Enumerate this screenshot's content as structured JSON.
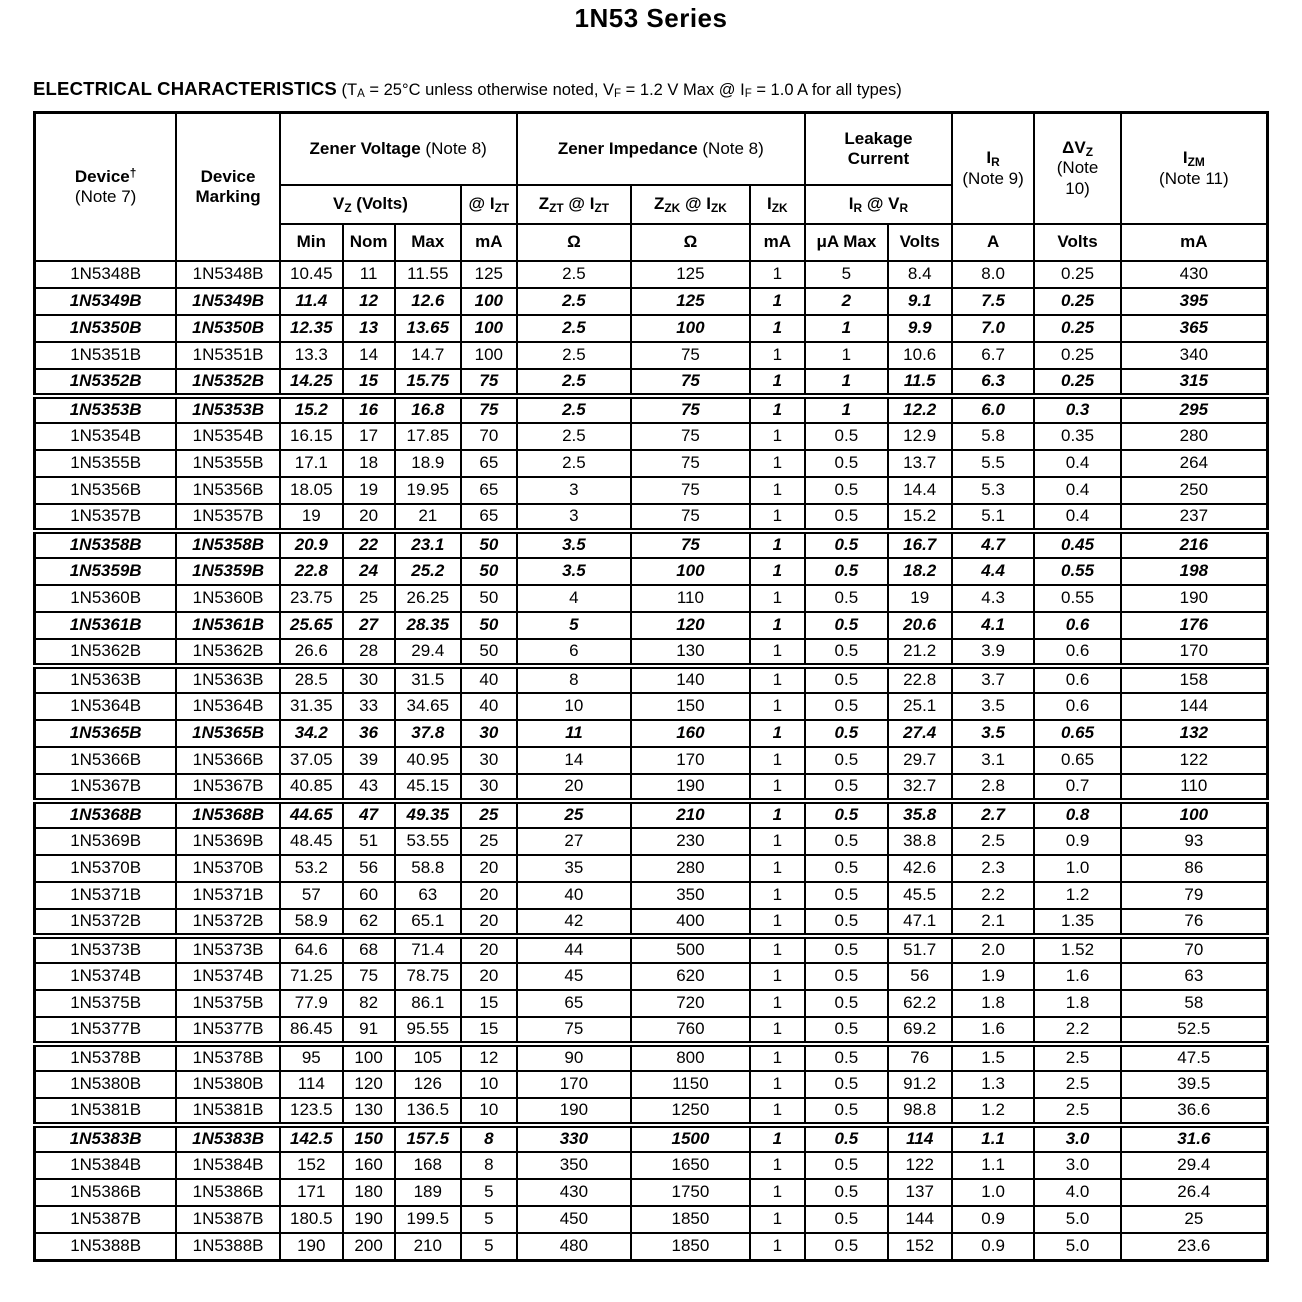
{
  "page": {
    "title": "1N53 Series"
  },
  "section": {
    "heading": "ELECTRICAL CHARACTERISTICS",
    "conditions": [
      {
        "t": " (T"
      },
      {
        "t": "A",
        "sub": true
      },
      {
        "t": " = 25°C unless otherwise noted, V"
      },
      {
        "t": "F",
        "sub": true
      },
      {
        "t": " = 1.2 V Max @ I"
      },
      {
        "t": "F",
        "sub": true
      },
      {
        "t": " = 1.0 A for all types)"
      }
    ]
  },
  "table": {
    "header": {
      "device": [
        {
          "t": "Device"
        },
        {
          "t": "†",
          "sup": true
        },
        {
          "br": true
        },
        {
          "t": "(Note 7)",
          "light": true
        }
      ],
      "marking": [
        {
          "t": "Device"
        },
        {
          "br": true
        },
        {
          "t": "Marking"
        }
      ],
      "zener_voltage": [
        {
          "t": "Zener Voltage"
        },
        {
          "t": " (Note 8)",
          "light": true
        }
      ],
      "zener_impedance": [
        {
          "t": "Zener Impedance"
        },
        {
          "t": " (Note 8)",
          "light": true
        }
      ],
      "leakage": [
        {
          "t": "Leakage"
        },
        {
          "br": true
        },
        {
          "t": "Current"
        }
      ],
      "vz_volts": [
        {
          "t": "V"
        },
        {
          "t": "Z",
          "sub": true
        },
        {
          "t": " (Volts)"
        }
      ],
      "at_izt": [
        {
          "t": "@ I"
        },
        {
          "t": "ZT",
          "sub": true
        }
      ],
      "zzt_at_izt": [
        {
          "t": "Z"
        },
        {
          "t": "ZT",
          "sub": true
        },
        {
          "t": " @ I"
        },
        {
          "t": "ZT",
          "sub": true
        }
      ],
      "zzk_at_izk": [
        {
          "t": "Z"
        },
        {
          "t": "ZK",
          "sub": true
        },
        {
          "t": " @ I"
        },
        {
          "t": "ZK",
          "sub": true
        }
      ],
      "izk": [
        {
          "t": "I"
        },
        {
          "t": "ZK",
          "sub": true
        }
      ],
      "ir_at_vr": [
        {
          "t": "I"
        },
        {
          "t": "R",
          "sub": true
        },
        {
          "t": " @ V"
        },
        {
          "t": "R",
          "sub": true
        }
      ],
      "ir_note9": [
        {
          "t": "I"
        },
        {
          "t": "R",
          "sub": true
        },
        {
          "br": true
        },
        {
          "t": "(Note 9)",
          "light": true
        }
      ],
      "dvz_note10": [
        {
          "t": "ΔV"
        },
        {
          "t": "Z",
          "sub": true
        },
        {
          "br": true
        },
        {
          "t": "(Note",
          "light": true
        },
        {
          "br": true
        },
        {
          "t": "10)",
          "light": true
        }
      ],
      "izm_note11": [
        {
          "t": "I"
        },
        {
          "t": "ZM",
          "sub": true
        },
        {
          "br": true
        },
        {
          "t": "(Note 11)",
          "light": true
        }
      ]
    },
    "units": [
      "Min",
      "Nom",
      "Max",
      "mA",
      "Ω",
      "Ω",
      "mA",
      "μA Max",
      "Volts",
      "A",
      "Volts",
      "mA"
    ],
    "col_widths_pct": [
      11.5,
      8.4,
      5.1,
      4.2,
      5.4,
      4.5,
      9.3,
      9.6,
      4.5,
      6.7,
      5.2,
      6.7,
      7.0,
      11.9
    ],
    "groups": [
      {
        "rows": [
          {
            "e": false,
            "c": [
              "1N5348B",
              "1N5348B",
              "10.45",
              "11",
              "11.55",
              "125",
              "2.5",
              "125",
              "1",
              "5",
              "8.4",
              "8.0",
              "0.25",
              "430"
            ]
          },
          {
            "e": true,
            "c": [
              "1N5349B",
              "1N5349B",
              "11.4",
              "12",
              "12.6",
              "100",
              "2.5",
              "125",
              "1",
              "2",
              "9.1",
              "7.5",
              "0.25",
              "395"
            ]
          },
          {
            "e": true,
            "c": [
              "1N5350B",
              "1N5350B",
              "12.35",
              "13",
              "13.65",
              "100",
              "2.5",
              "100",
              "1",
              "1",
              "9.9",
              "7.0",
              "0.25",
              "365"
            ]
          },
          {
            "e": false,
            "c": [
              "1N5351B",
              "1N5351B",
              "13.3",
              "14",
              "14.7",
              "100",
              "2.5",
              "75",
              "1",
              "1",
              "10.6",
              "6.7",
              "0.25",
              "340"
            ]
          },
          {
            "e": true,
            "c": [
              "1N5352B",
              "1N5352B",
              "14.25",
              "15",
              "15.75",
              "75",
              "2.5",
              "75",
              "1",
              "1",
              "11.5",
              "6.3",
              "0.25",
              "315"
            ]
          }
        ]
      },
      {
        "rows": [
          {
            "e": true,
            "c": [
              "1N5353B",
              "1N5353B",
              "15.2",
              "16",
              "16.8",
              "75",
              "2.5",
              "75",
              "1",
              "1",
              "12.2",
              "6.0",
              "0.3",
              "295"
            ]
          },
          {
            "e": false,
            "c": [
              "1N5354B",
              "1N5354B",
              "16.15",
              "17",
              "17.85",
              "70",
              "2.5",
              "75",
              "1",
              "0.5",
              "12.9",
              "5.8",
              "0.35",
              "280"
            ]
          },
          {
            "e": false,
            "c": [
              "1N5355B",
              "1N5355B",
              "17.1",
              "18",
              "18.9",
              "65",
              "2.5",
              "75",
              "1",
              "0.5",
              "13.7",
              "5.5",
              "0.4",
              "264"
            ]
          },
          {
            "e": false,
            "c": [
              "1N5356B",
              "1N5356B",
              "18.05",
              "19",
              "19.95",
              "65",
              "3",
              "75",
              "1",
              "0.5",
              "14.4",
              "5.3",
              "0.4",
              "250"
            ]
          },
          {
            "e": false,
            "c": [
              "1N5357B",
              "1N5357B",
              "19",
              "20",
              "21",
              "65",
              "3",
              "75",
              "1",
              "0.5",
              "15.2",
              "5.1",
              "0.4",
              "237"
            ]
          }
        ]
      },
      {
        "rows": [
          {
            "e": true,
            "c": [
              "1N5358B",
              "1N5358B",
              "20.9",
              "22",
              "23.1",
              "50",
              "3.5",
              "75",
              "1",
              "0.5",
              "16.7",
              "4.7",
              "0.45",
              "216"
            ]
          },
          {
            "e": true,
            "c": [
              "1N5359B",
              "1N5359B",
              "22.8",
              "24",
              "25.2",
              "50",
              "3.5",
              "100",
              "1",
              "0.5",
              "18.2",
              "4.4",
              "0.55",
              "198"
            ]
          },
          {
            "e": false,
            "c": [
              "1N5360B",
              "1N5360B",
              "23.75",
              "25",
              "26.25",
              "50",
              "4",
              "110",
              "1",
              "0.5",
              "19",
              "4.3",
              "0.55",
              "190"
            ]
          },
          {
            "e": true,
            "c": [
              "1N5361B",
              "1N5361B",
              "25.65",
              "27",
              "28.35",
              "50",
              "5",
              "120",
              "1",
              "0.5",
              "20.6",
              "4.1",
              "0.6",
              "176"
            ]
          },
          {
            "e": false,
            "c": [
              "1N5362B",
              "1N5362B",
              "26.6",
              "28",
              "29.4",
              "50",
              "6",
              "130",
              "1",
              "0.5",
              "21.2",
              "3.9",
              "0.6",
              "170"
            ]
          }
        ]
      },
      {
        "rows": [
          {
            "e": false,
            "c": [
              "1N5363B",
              "1N5363B",
              "28.5",
              "30",
              "31.5",
              "40",
              "8",
              "140",
              "1",
              "0.5",
              "22.8",
              "3.7",
              "0.6",
              "158"
            ]
          },
          {
            "e": false,
            "c": [
              "1N5364B",
              "1N5364B",
              "31.35",
              "33",
              "34.65",
              "40",
              "10",
              "150",
              "1",
              "0.5",
              "25.1",
              "3.5",
              "0.6",
              "144"
            ]
          },
          {
            "e": true,
            "c": [
              "1N5365B",
              "1N5365B",
              "34.2",
              "36",
              "37.8",
              "30",
              "11",
              "160",
              "1",
              "0.5",
              "27.4",
              "3.5",
              "0.65",
              "132"
            ]
          },
          {
            "e": false,
            "c": [
              "1N5366B",
              "1N5366B",
              "37.05",
              "39",
              "40.95",
              "30",
              "14",
              "170",
              "1",
              "0.5",
              "29.7",
              "3.1",
              "0.65",
              "122"
            ]
          },
          {
            "e": false,
            "c": [
              "1N5367B",
              "1N5367B",
              "40.85",
              "43",
              "45.15",
              "30",
              "20",
              "190",
              "1",
              "0.5",
              "32.7",
              "2.8",
              "0.7",
              "110"
            ]
          }
        ]
      },
      {
        "rows": [
          {
            "e": true,
            "c": [
              "1N5368B",
              "1N5368B",
              "44.65",
              "47",
              "49.35",
              "25",
              "25",
              "210",
              "1",
              "0.5",
              "35.8",
              "2.7",
              "0.8",
              "100"
            ]
          },
          {
            "e": false,
            "c": [
              "1N5369B",
              "1N5369B",
              "48.45",
              "51",
              "53.55",
              "25",
              "27",
              "230",
              "1",
              "0.5",
              "38.8",
              "2.5",
              "0.9",
              "93"
            ]
          },
          {
            "e": false,
            "c": [
              "1N5370B",
              "1N5370B",
              "53.2",
              "56",
              "58.8",
              "20",
              "35",
              "280",
              "1",
              "0.5",
              "42.6",
              "2.3",
              "1.0",
              "86"
            ]
          },
          {
            "e": false,
            "c": [
              "1N5371B",
              "1N5371B",
              "57",
              "60",
              "63",
              "20",
              "40",
              "350",
              "1",
              "0.5",
              "45.5",
              "2.2",
              "1.2",
              "79"
            ]
          },
          {
            "e": false,
            "c": [
              "1N5372B",
              "1N5372B",
              "58.9",
              "62",
              "65.1",
              "20",
              "42",
              "400",
              "1",
              "0.5",
              "47.1",
              "2.1",
              "1.35",
              "76"
            ]
          }
        ]
      },
      {
        "rows": [
          {
            "e": false,
            "c": [
              "1N5373B",
              "1N5373B",
              "64.6",
              "68",
              "71.4",
              "20",
              "44",
              "500",
              "1",
              "0.5",
              "51.7",
              "2.0",
              "1.52",
              "70"
            ]
          },
          {
            "e": false,
            "c": [
              "1N5374B",
              "1N5374B",
              "71.25",
              "75",
              "78.75",
              "20",
              "45",
              "620",
              "1",
              "0.5",
              "56",
              "1.9",
              "1.6",
              "63"
            ]
          },
          {
            "e": false,
            "c": [
              "1N5375B",
              "1N5375B",
              "77.9",
              "82",
              "86.1",
              "15",
              "65",
              "720",
              "1",
              "0.5",
              "62.2",
              "1.8",
              "1.8",
              "58"
            ]
          },
          {
            "e": false,
            "c": [
              "1N5377B",
              "1N5377B",
              "86.45",
              "91",
              "95.55",
              "15",
              "75",
              "760",
              "1",
              "0.5",
              "69.2",
              "1.6",
              "2.2",
              "52.5"
            ]
          }
        ]
      },
      {
        "rows": [
          {
            "e": false,
            "c": [
              "1N5378B",
              "1N5378B",
              "95",
              "100",
              "105",
              "12",
              "90",
              "800",
              "1",
              "0.5",
              "76",
              "1.5",
              "2.5",
              "47.5"
            ]
          },
          {
            "e": false,
            "c": [
              "1N5380B",
              "1N5380B",
              "114",
              "120",
              "126",
              "10",
              "170",
              "1150",
              "1",
              "0.5",
              "91.2",
              "1.3",
              "2.5",
              "39.5"
            ]
          },
          {
            "e": false,
            "c": [
              "1N5381B",
              "1N5381B",
              "123.5",
              "130",
              "136.5",
              "10",
              "190",
              "1250",
              "1",
              "0.5",
              "98.8",
              "1.2",
              "2.5",
              "36.6"
            ]
          }
        ]
      },
      {
        "rows": [
          {
            "e": true,
            "c": [
              "1N5383B",
              "1N5383B",
              "142.5",
              "150",
              "157.5",
              "8",
              "330",
              "1500",
              "1",
              "0.5",
              "114",
              "1.1",
              "3.0",
              "31.6"
            ]
          },
          {
            "e": false,
            "c": [
              "1N5384B",
              "1N5384B",
              "152",
              "160",
              "168",
              "8",
              "350",
              "1650",
              "1",
              "0.5",
              "122",
              "1.1",
              "3.0",
              "29.4"
            ]
          },
          {
            "e": false,
            "c": [
              "1N5386B",
              "1N5386B",
              "171",
              "180",
              "189",
              "5",
              "430",
              "1750",
              "1",
              "0.5",
              "137",
              "1.0",
              "4.0",
              "26.4"
            ]
          },
          {
            "e": false,
            "c": [
              "1N5387B",
              "1N5387B",
              "180.5",
              "190",
              "199.5",
              "5",
              "450",
              "1850",
              "1",
              "0.5",
              "144",
              "0.9",
              "5.0",
              "25"
            ]
          },
          {
            "e": false,
            "c": [
              "1N5388B",
              "1N5388B",
              "190",
              "200",
              "210",
              "5",
              "480",
              "1850",
              "1",
              "0.5",
              "152",
              "0.9",
              "5.0",
              "23.6"
            ]
          }
        ]
      }
    ]
  }
}
